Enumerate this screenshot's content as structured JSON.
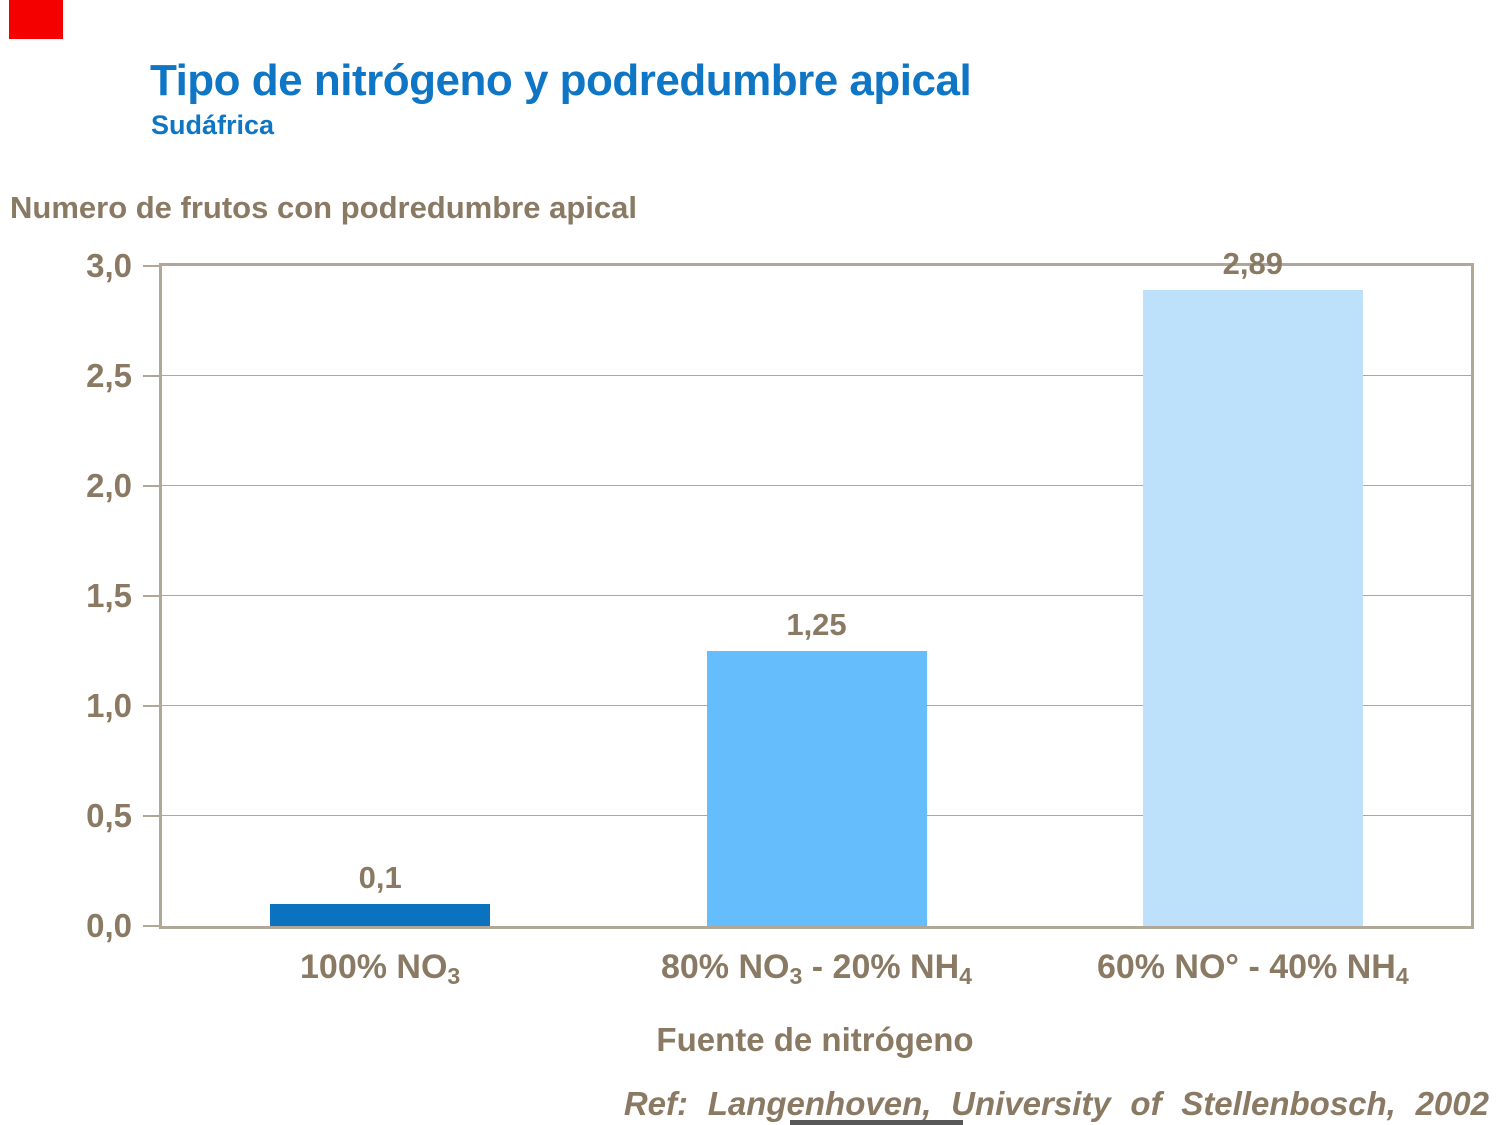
{
  "slide": {
    "title": "Tipo de nitrógeno y podredumbre apical",
    "subtitle": "Sudáfrica",
    "footer_ref": "Ref: Langenhoven, University of Stellenbosch, 2002"
  },
  "chart_data": {
    "type": "bar",
    "title": "Tipo de nitrógeno y podredumbre apical (Sudáfrica)",
    "ylabel": "Numero de frutos con podredumbre apical",
    "xlabel": "Fuente de nitrógeno",
    "ylim": [
      0,
      3
    ],
    "ytick_step": 0.5,
    "ytick_labels": [
      "0,0",
      "0,5",
      "1,0",
      "1,5",
      "2,0",
      "2,5",
      "3,0"
    ],
    "categories": [
      "100% NO3",
      "80% NO3 - 20% NH4",
      "60% NO° - 40% NH4"
    ],
    "categories_rich": [
      [
        {
          "t": "100% NO"
        },
        {
          "t": "3",
          "sub": true
        }
      ],
      [
        {
          "t": "80% NO"
        },
        {
          "t": "3",
          "sub": true
        },
        {
          "t": " - 20% NH"
        },
        {
          "t": "4",
          "sub": true
        }
      ],
      [
        {
          "t": "60% NO° - 40% NH"
        },
        {
          "t": "4",
          "sub": true
        }
      ]
    ],
    "values": [
      0.1,
      1.25,
      2.89
    ],
    "value_labels": [
      "0,1",
      "1,25",
      "2,89"
    ],
    "bar_colors": [
      "#0A72BF",
      "#65BEFB",
      "#BDE0FB"
    ],
    "grid": true,
    "legend": false
  },
  "colors": {
    "title_blue": "#0E76C4",
    "text_brown": "#8A7A64",
    "axis_tan": "#B2A698",
    "background": "#FFFFFF",
    "logo_red": "#F40000",
    "bottom_artifact_gray": "#585858"
  }
}
